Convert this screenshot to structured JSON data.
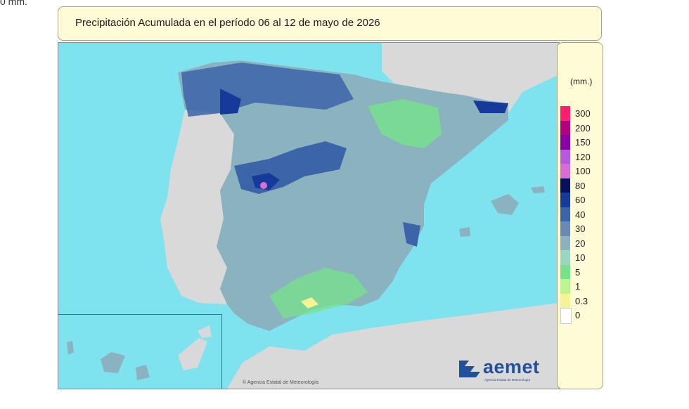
{
  "header": {
    "fragment": "0 mm.",
    "title": "Precipitación Acumulada en el período 06 al 12 de mayo de 2026"
  },
  "legend": {
    "unit": "(mm.)",
    "levels": [
      {
        "label": "300",
        "color": "#ff1e6e"
      },
      {
        "label": "200",
        "color": "#b4007a"
      },
      {
        "label": "150",
        "color": "#8a00a8"
      },
      {
        "label": "120",
        "color": "#b45adc"
      },
      {
        "label": "100",
        "color": "#d96ed2"
      },
      {
        "label": "80",
        "color": "#05115a"
      },
      {
        "label": "60",
        "color": "#163a9a"
      },
      {
        "label": "40",
        "color": "#3c64a8"
      },
      {
        "label": "30",
        "color": "#6a8ab6"
      },
      {
        "label": "20",
        "color": "#8bb3bf"
      },
      {
        "label": "10",
        "color": "#9ad6c2"
      },
      {
        "label": "5",
        "color": "#76e38b"
      },
      {
        "label": "1",
        "color": "#bdf591"
      },
      {
        "label": "0.3",
        "color": "#f4f492"
      },
      {
        "label": "0",
        "color": "#ffffff"
      }
    ]
  },
  "map": {
    "sea_color": "#7fe3ef",
    "land_foreign_color": "#d9d9d9",
    "copyright": "© Agencia Estatal de Meteorología"
  },
  "logo": {
    "name": "aemet",
    "subtitle": "Agencia Estatal de Meteorología"
  }
}
